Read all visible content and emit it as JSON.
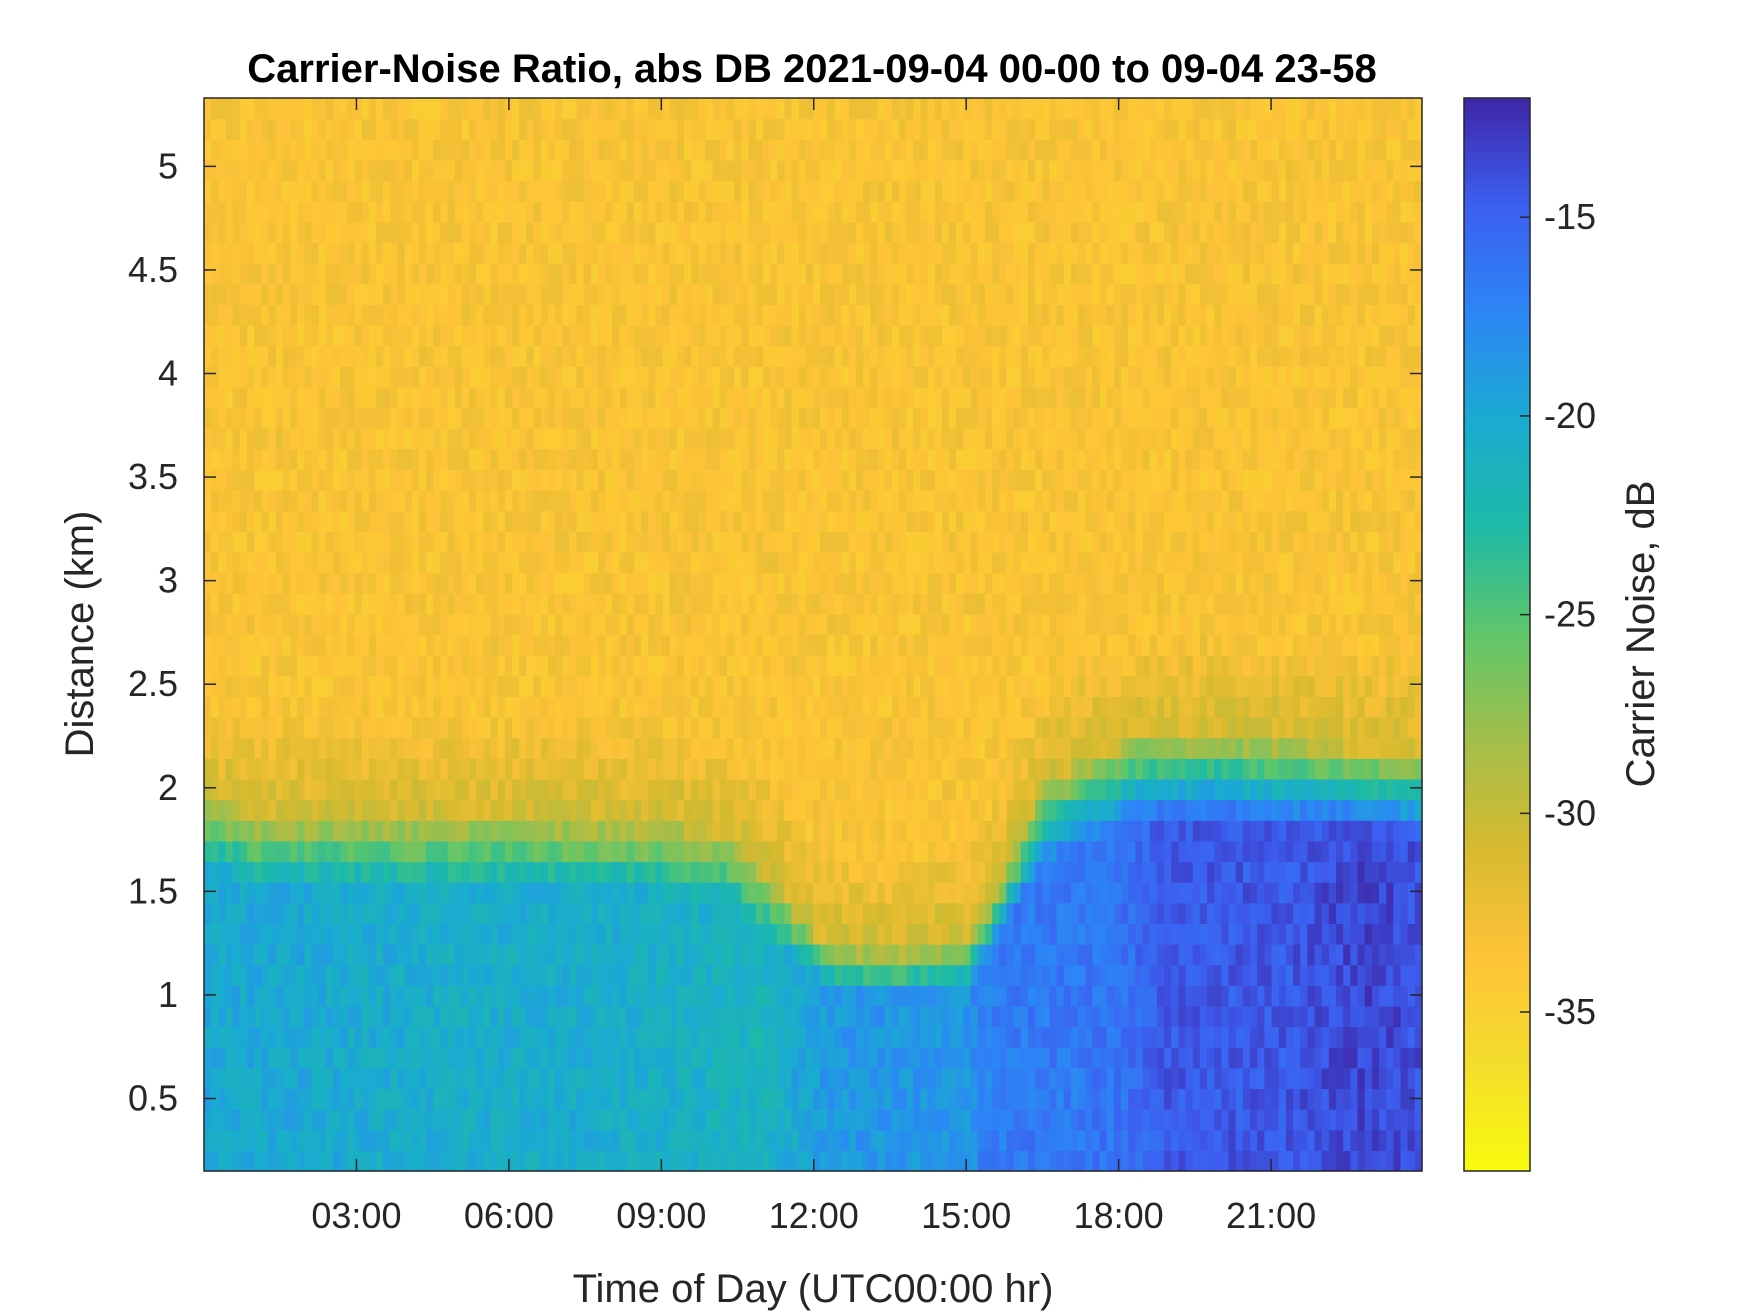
{
  "chart_data": {
    "type": "heatmap",
    "title": "Carrier-Noise Ratio, abs DB 2021-09-04 00-00 to 09-04 23-58",
    "xlabel": "Time of Day (UTC00:00 hr)",
    "ylabel": "Distance (km)",
    "colorbar_label": "Carrier Noise, dB",
    "colormap": "parula",
    "x_range_hours": [
      0.0,
      23.97
    ],
    "y_range_km": [
      0.15,
      5.33
    ],
    "color_range_db": [
      -39,
      -12
    ],
    "x_ticks": [
      {
        "value": 3,
        "label": "03:00"
      },
      {
        "value": 6,
        "label": "06:00"
      },
      {
        "value": 9,
        "label": "09:00"
      },
      {
        "value": 12,
        "label": "12:00"
      },
      {
        "value": 15,
        "label": "15:00"
      },
      {
        "value": 18,
        "label": "18:00"
      },
      {
        "value": 21,
        "label": "21:00"
      }
    ],
    "y_ticks": [
      {
        "value": 0.5,
        "label": "0.5"
      },
      {
        "value": 1,
        "label": "1"
      },
      {
        "value": 1.5,
        "label": "1.5"
      },
      {
        "value": 2,
        "label": "2"
      },
      {
        "value": 2.5,
        "label": "2.5"
      },
      {
        "value": 3,
        "label": "3"
      },
      {
        "value": 3.5,
        "label": "3.5"
      },
      {
        "value": 4,
        "label": "4"
      },
      {
        "value": 4.5,
        "label": "4.5"
      },
      {
        "value": 5,
        "label": "5"
      }
    ],
    "colorbar_ticks": [
      {
        "value": -15,
        "label": "-15"
      },
      {
        "value": -20,
        "label": "-20"
      },
      {
        "value": -25,
        "label": "-25"
      },
      {
        "value": -30,
        "label": "-30"
      },
      {
        "value": -35,
        "label": "-35"
      }
    ],
    "background_noise_db": -33.5,
    "boundary_layer_top_km": {
      "time_h": [
        0,
        1,
        3,
        6,
        9,
        10.5,
        11.5,
        12.2,
        13.5,
        15,
        15.7,
        16.5,
        17.5,
        18.5,
        20,
        22,
        23.97
      ],
      "height": [
        1.95,
        1.85,
        1.85,
        1.85,
        1.82,
        1.75,
        1.45,
        1.25,
        1.2,
        1.25,
        1.55,
        2.0,
        2.15,
        2.25,
        2.25,
        2.2,
        2.15
      ]
    },
    "near_surface_db": {
      "time_h": [
        0,
        2,
        4,
        6,
        8,
        10,
        11,
        12,
        13,
        14,
        15,
        15.3,
        16,
        17,
        18,
        19,
        20,
        21,
        22,
        22.7,
        23.2,
        23.97
      ],
      "value": [
        -20,
        -20,
        -20.5,
        -20.5,
        -20.5,
        -21,
        -21.5,
        -19,
        -18.5,
        -18.5,
        -18.5,
        -17,
        -16.5,
        -16.5,
        -16,
        -14.5,
        -14.5,
        -14.5,
        -14,
        -13.5,
        -13.5,
        -14
      ]
    }
  }
}
